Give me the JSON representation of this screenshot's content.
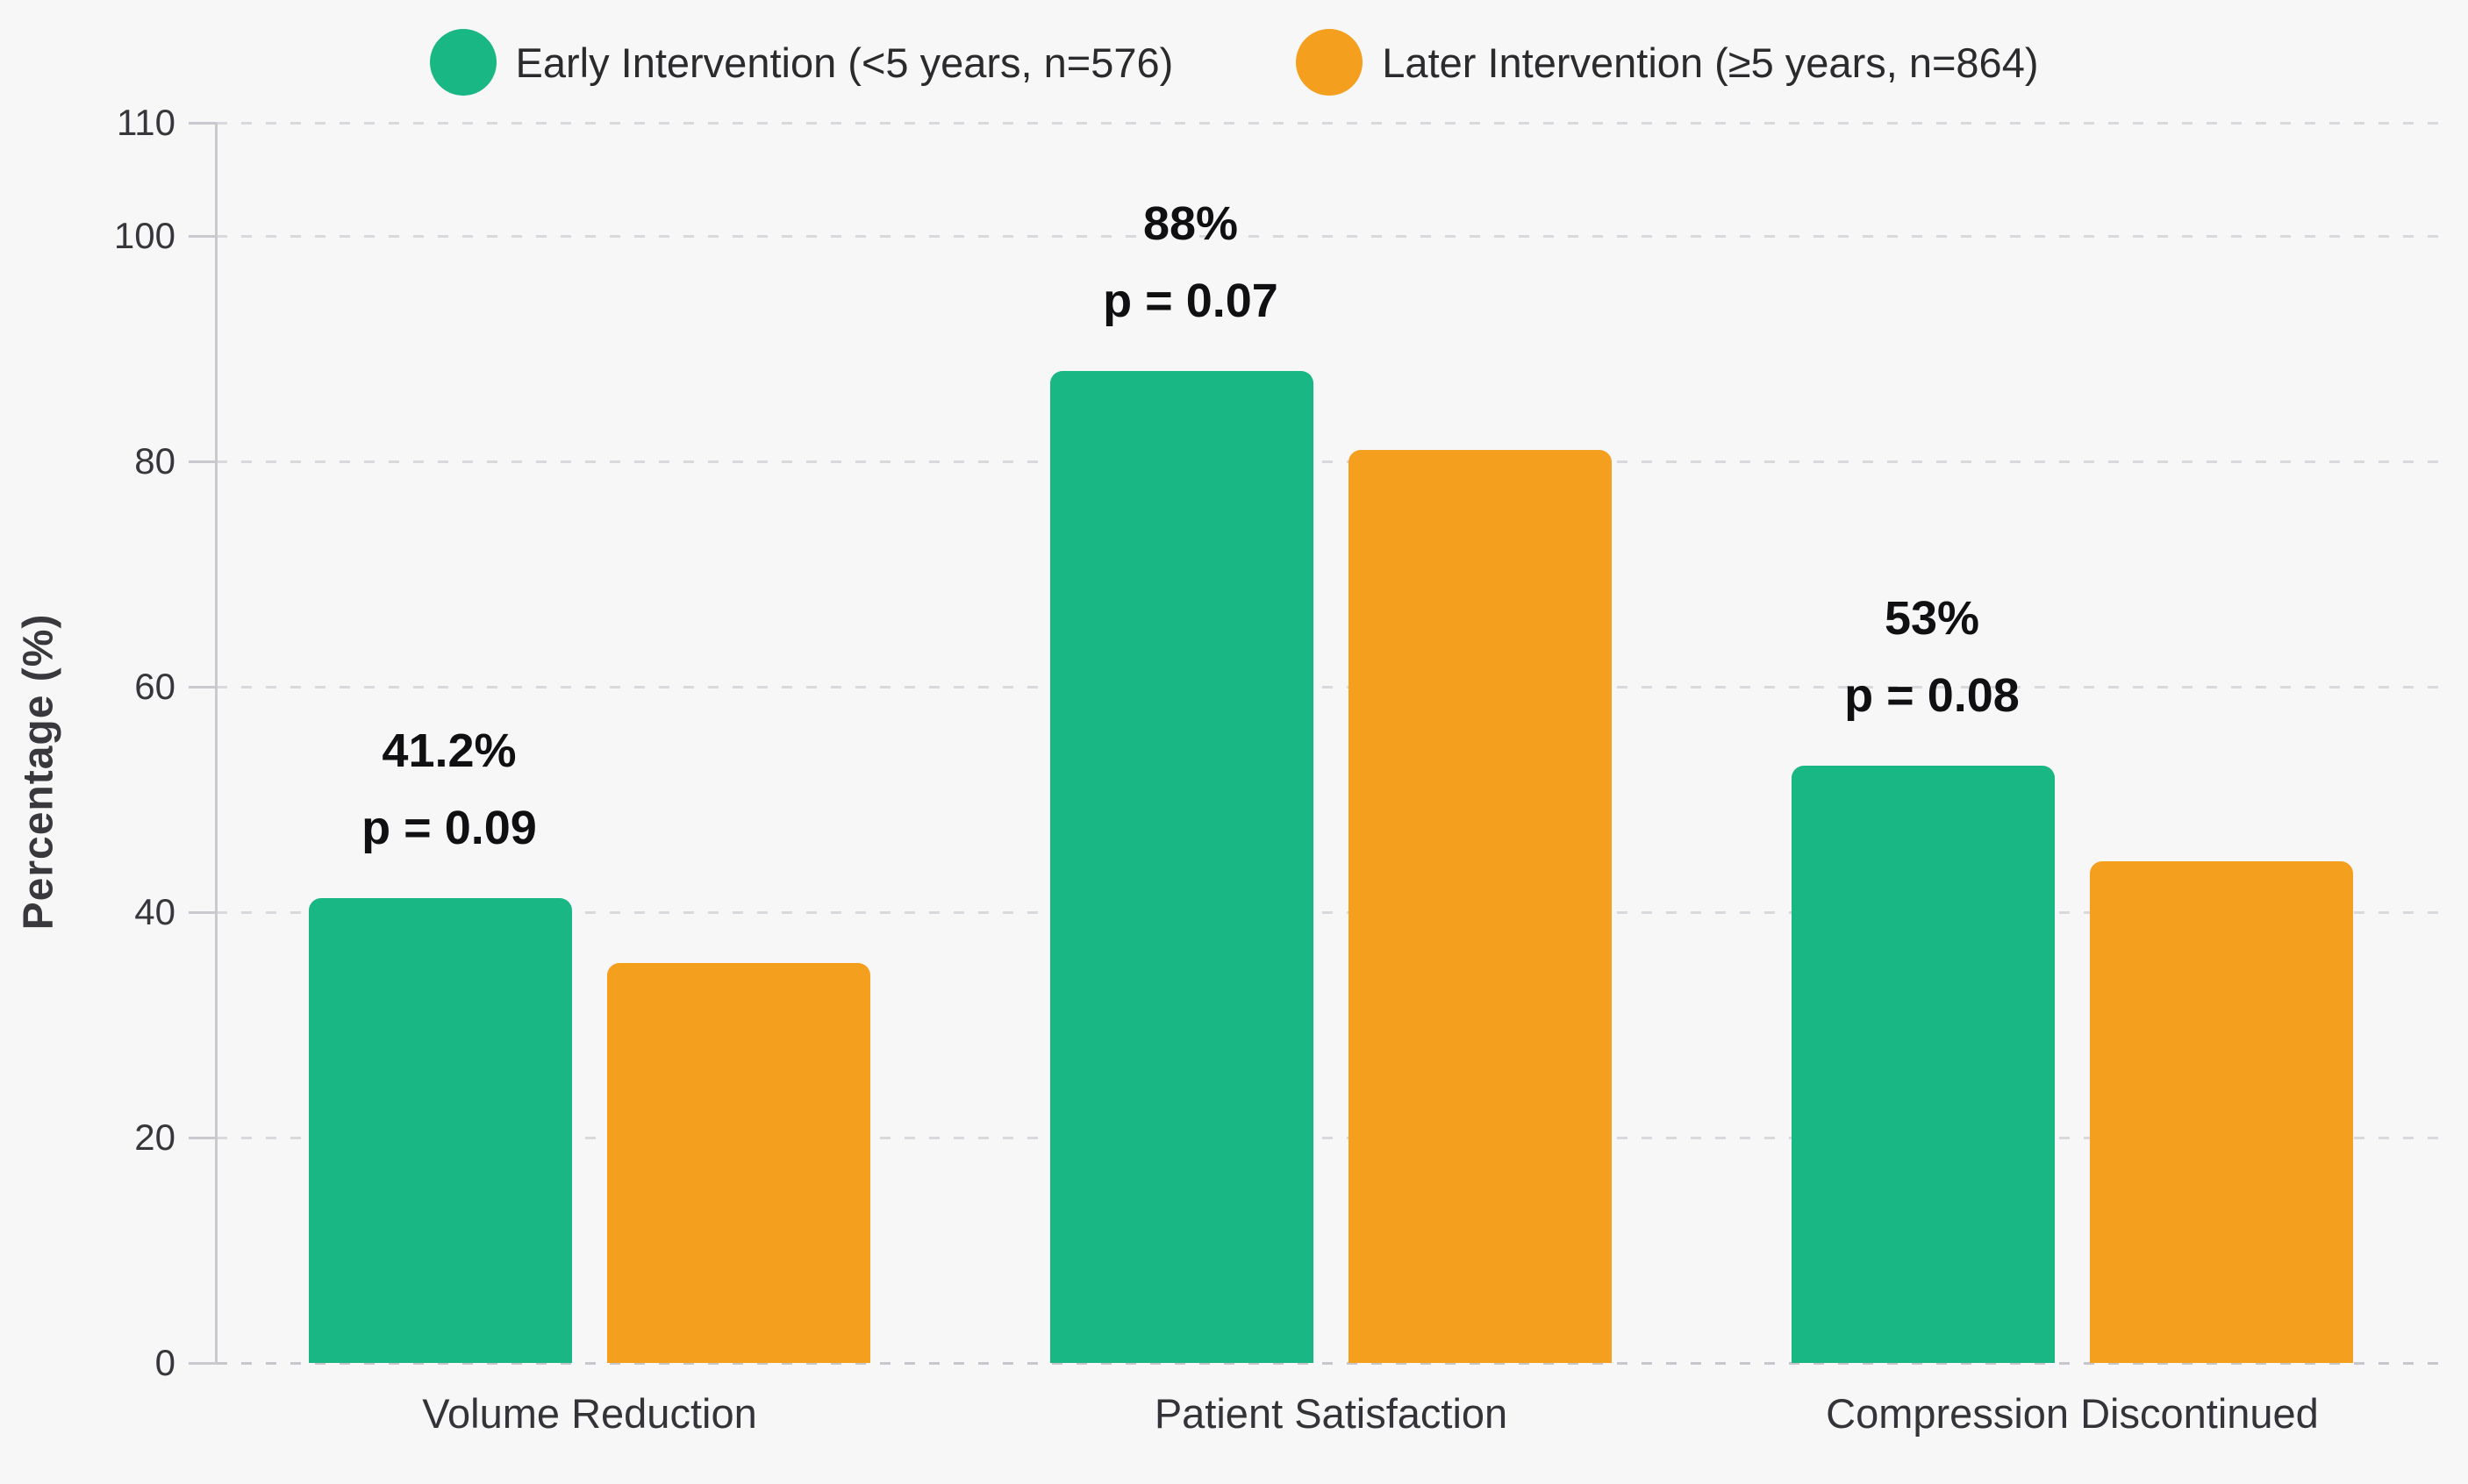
{
  "chart_data": {
    "type": "bar",
    "title": "",
    "categories": [
      "Volume Reduction",
      "Patient Satisfaction",
      "Compression Discontinued"
    ],
    "series": [
      {
        "name": "Early Intervention (<5 years, n=576)",
        "color": "#19b783",
        "values": [
          41.2,
          88,
          53
        ]
      },
      {
        "name": "Later Intervention (≥5 years, n=864)",
        "color": "#f49f1e",
        "values": [
          35.5,
          81,
          44.5
        ]
      }
    ],
    "bar_annotations": [
      {
        "line1": "41.2%",
        "line2": "p = 0.09"
      },
      {
        "line1": "88%",
        "line2": "p = 0.07"
      },
      {
        "line1": "53%",
        "line2": "p = 0.08"
      }
    ],
    "xlabel": "",
    "ylabel": "Percentage (%)",
    "yticks": [
      0,
      20,
      40,
      60,
      80,
      100,
      110
    ],
    "ylim": [
      0,
      110
    ],
    "grid": "horizontal-dashed",
    "legend_position": "top-center"
  },
  "style": {
    "background": "#f7f7f8",
    "grid_color": "#d8d8dd",
    "axis_color": "#c9c9cf",
    "tick_label_color": "#37373b",
    "category_label_color": "#343438",
    "annotation_color": "#101013",
    "legend_text_color": "#2b2b2e"
  }
}
